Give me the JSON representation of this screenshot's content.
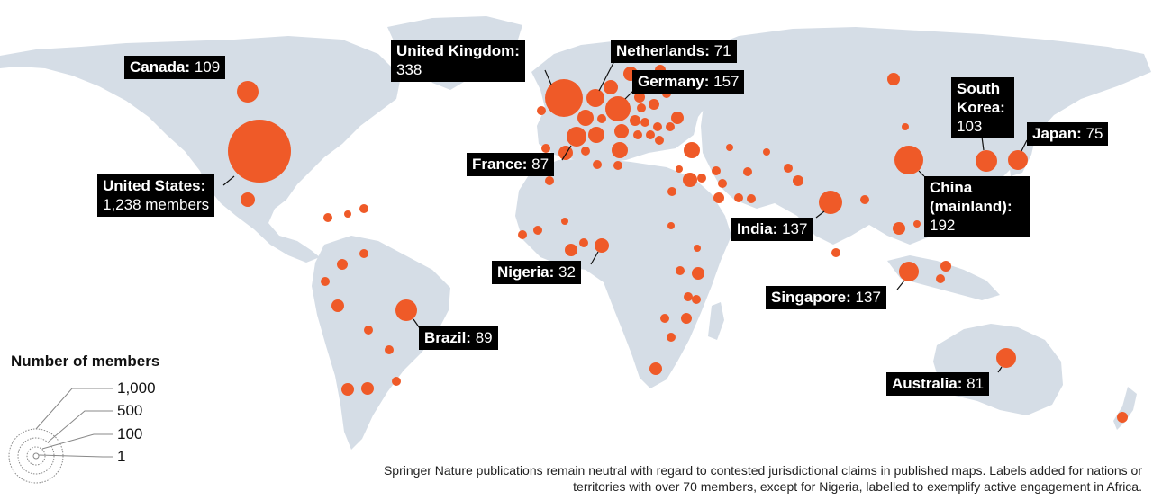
{
  "colors": {
    "land": "#d5dde6",
    "bubble": "#ef5a28",
    "label_bg": "#000000",
    "label_text": "#ffffff"
  },
  "labels": [
    {
      "id": "united-states",
      "name": "United States:",
      "value": "1,238 members"
    },
    {
      "id": "canada",
      "name": "Canada:",
      "value": "109"
    },
    {
      "id": "united-kingdom",
      "name": "United Kingdom:",
      "value": "338"
    },
    {
      "id": "netherlands",
      "name": "Netherlands:",
      "value": "71"
    },
    {
      "id": "germany",
      "name": "Germany:",
      "value": "157"
    },
    {
      "id": "france",
      "name": "France:",
      "value": "87"
    },
    {
      "id": "nigeria",
      "name": "Nigeria:",
      "value": "32"
    },
    {
      "id": "brazil",
      "name": "Brazil:",
      "value": "89"
    },
    {
      "id": "india",
      "name": "India:",
      "value": "137"
    },
    {
      "id": "china",
      "name": "China (mainland):",
      "value": "192"
    },
    {
      "id": "south-korea",
      "name": "South Korea:",
      "value": "103"
    },
    {
      "id": "japan",
      "name": "Japan:",
      "value": "75"
    },
    {
      "id": "singapore",
      "name": "Singapore:",
      "value": "137"
    },
    {
      "id": "australia",
      "name": "Australia:",
      "value": "81"
    }
  ],
  "legend": {
    "title": "Number of members",
    "ticks": [
      "1,000",
      "500",
      "100",
      "1"
    ]
  },
  "footnote": "Springer Nature publications remain neutral with regard to contested jurisdictional claims in published maps. Labels added for nations or territories with over 70 members, except for Nigeria, labelled to exemplify active engagement in Africa."
}
